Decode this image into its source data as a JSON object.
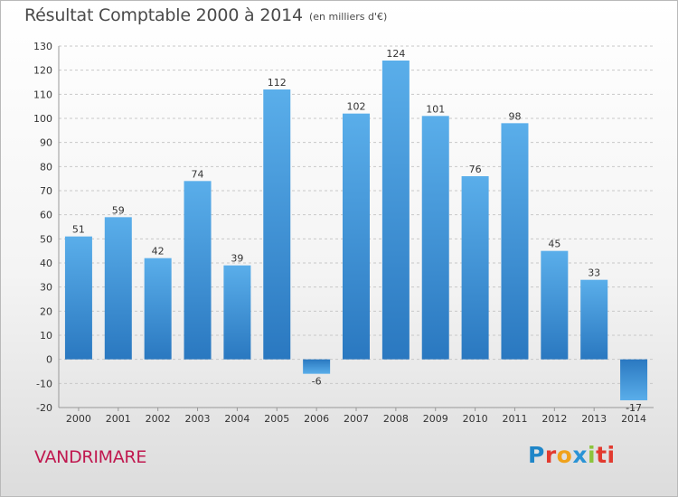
{
  "header": {
    "title": "Résultat Comptable 2000 à 2014",
    "subtitle": "(en milliers d'€)"
  },
  "footer": {
    "location": "VANDRIMARE",
    "logo_text": "Proxiti"
  },
  "colors": {
    "bar_top": "#5aaeea",
    "bar_bottom": "#2a78c0",
    "grid": "#c8c8c8",
    "axis_text": "#333333",
    "title": "#4a4a4a",
    "location": "#c0184f"
  },
  "chart_data": {
    "type": "bar",
    "categories": [
      "2000",
      "2001",
      "2002",
      "2003",
      "2004",
      "2005",
      "2006",
      "2007",
      "2008",
      "2009",
      "2010",
      "2011",
      "2012",
      "2013",
      "2014"
    ],
    "values": [
      51,
      59,
      42,
      74,
      39,
      112,
      -6,
      102,
      124,
      101,
      76,
      98,
      45,
      33,
      -17
    ],
    "ylim": [
      -20,
      130
    ],
    "yticks": [
      -20,
      -10,
      0,
      10,
      20,
      30,
      40,
      50,
      60,
      70,
      80,
      90,
      100,
      110,
      120,
      130
    ],
    "grid": true,
    "title": "Résultat Comptable 2000 à 2014",
    "subtitle": "(en milliers d'€)",
    "xlabel": "",
    "ylabel": ""
  }
}
